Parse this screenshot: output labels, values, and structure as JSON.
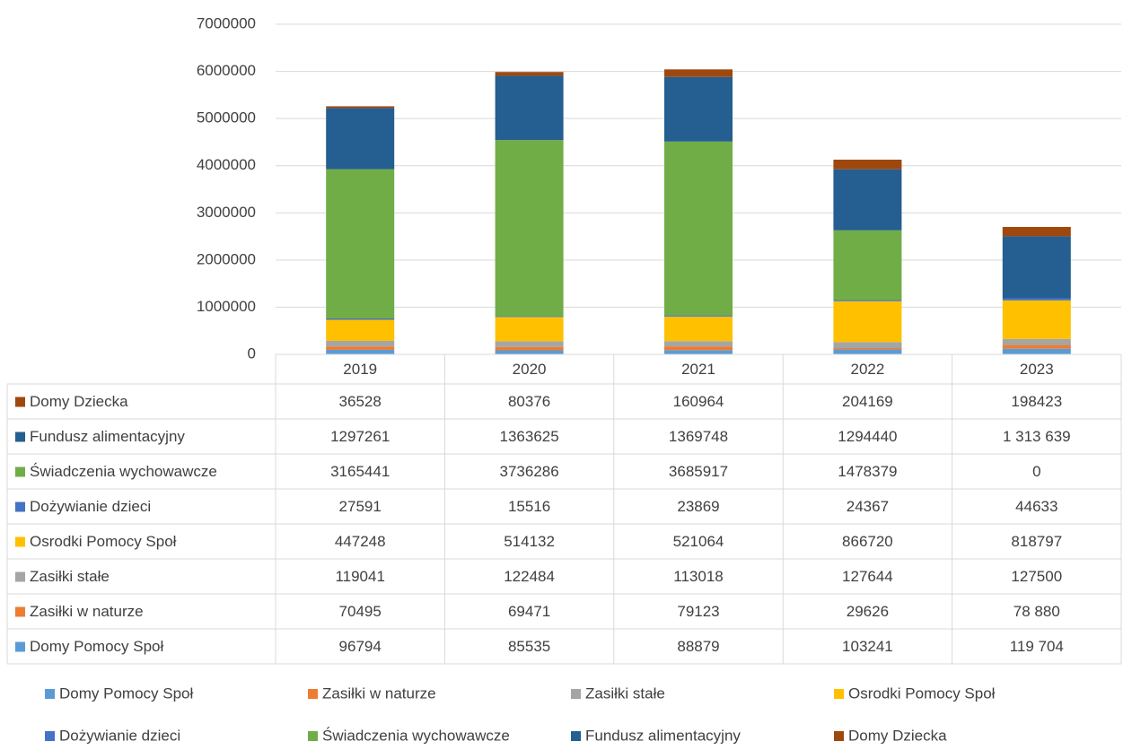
{
  "chart_data": {
    "type": "stacked_bar",
    "categories": [
      "2019",
      "2020",
      "2021",
      "2022",
      "2023"
    ],
    "series": [
      {
        "name": "Domy Pomocy Społ",
        "color": "#5b9bd5",
        "values": [
          96794,
          85535,
          88879,
          103241,
          119704
        ],
        "value_labels": [
          "96794",
          "85535",
          "88879",
          "103241",
          "119 704"
        ]
      },
      {
        "name": "Zasiłki w naturze",
        "color": "#ed7d31",
        "values": [
          70495,
          69471,
          79123,
          29626,
          78880
        ],
        "value_labels": [
          "70495",
          "69471",
          "79123",
          "29626",
          "78 880"
        ]
      },
      {
        "name": "Zasiłki stałe",
        "color": "#a5a5a5",
        "values": [
          119041,
          122484,
          113018,
          127644,
          127500
        ]
      },
      {
        "name": "Osrodki Pomocy Społ",
        "color": "#ffc000",
        "values": [
          447248,
          514132,
          521064,
          866720,
          818797
        ]
      },
      {
        "name": "Dożywianie dzieci",
        "color": "#4472c4",
        "values": [
          27591,
          15516,
          23869,
          24367,
          44633
        ]
      },
      {
        "name": "Świadczenia wychowawcze",
        "color": "#70ad47",
        "values": [
          3165441,
          3736286,
          3685917,
          1478379,
          0
        ]
      },
      {
        "name": "Fundusz alimentacyjny",
        "color": "#255e91",
        "values": [
          1297261,
          1363625,
          1369748,
          1294440,
          1313639
        ],
        "value_labels": [
          "1297261",
          "1363625",
          "1369748",
          "1294440",
          "1 313 639"
        ]
      },
      {
        "name": "Domy Dziecka",
        "color": "#9e480e",
        "values": [
          36528,
          80376,
          160964,
          204169,
          198423
        ]
      }
    ],
    "ylim": [
      0,
      7000000
    ],
    "yticks": [
      0,
      1000000,
      2000000,
      3000000,
      4000000,
      5000000,
      6000000,
      7000000
    ],
    "grid": true,
    "data_table": true,
    "legend": "bottom"
  }
}
